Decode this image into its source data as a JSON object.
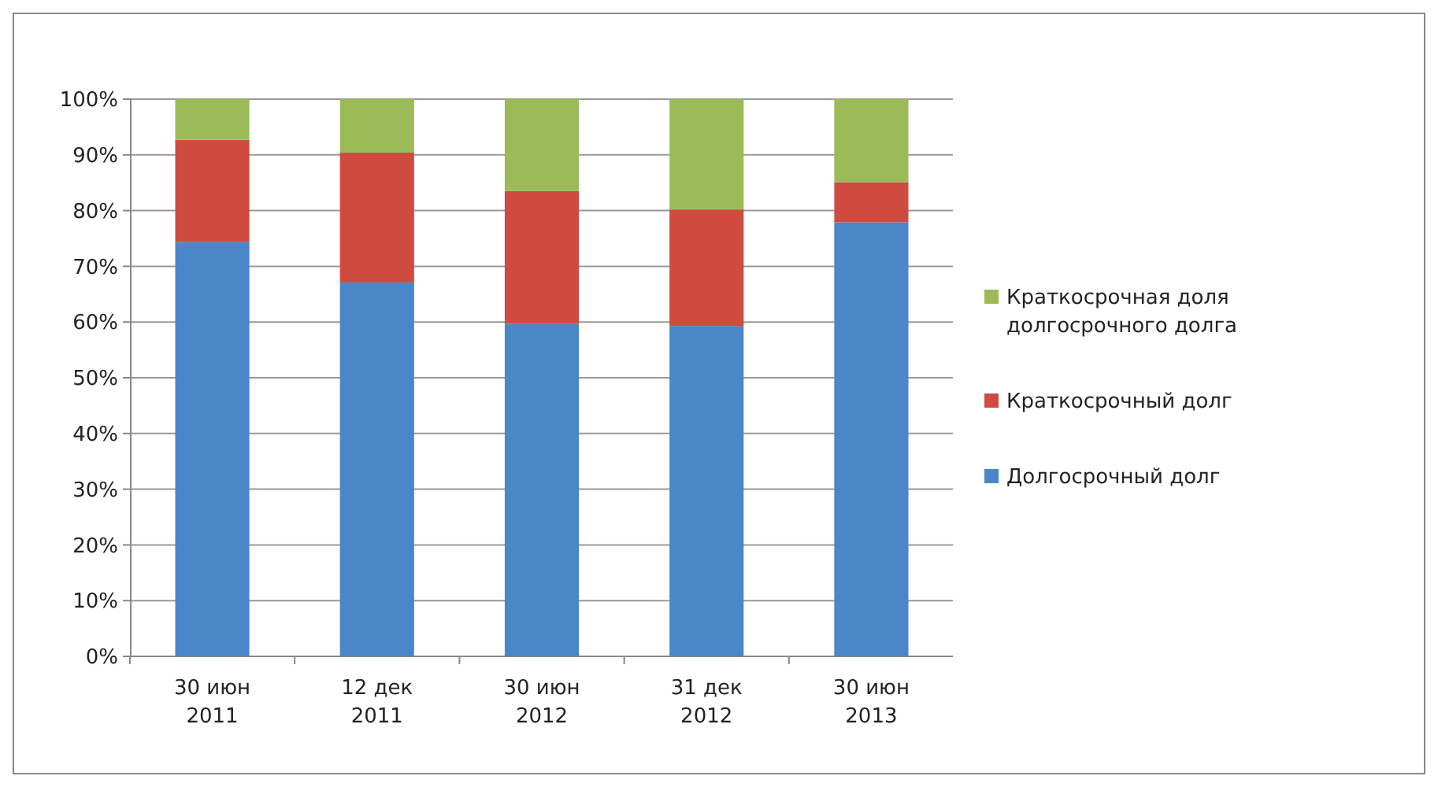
{
  "chart_data": {
    "type": "bar",
    "stacked": true,
    "categories": [
      "30 июн 2011",
      "12 дек 2011",
      "30 июн 2012",
      "31 дек 2012",
      "30 июн 2013"
    ],
    "series": [
      {
        "name": "Долгосрочный долг",
        "color": "#4a86c8",
        "values": [
          74.4,
          67.1,
          59.7,
          59.3,
          77.9
        ]
      },
      {
        "name": "Краткосрочный долг",
        "color": "#cf4a3f",
        "values": [
          18.3,
          23.3,
          23.8,
          20.9,
          7.2
        ]
      },
      {
        "name": "Краткосрочная доля долгосрочного долга",
        "color": "#9bbb59",
        "values": [
          7.3,
          9.6,
          16.5,
          19.8,
          14.9
        ]
      }
    ],
    "ylim": [
      0,
      100
    ],
    "yticks": [
      {
        "value": 0,
        "label": "0%"
      },
      {
        "value": 10,
        "label": "10%"
      },
      {
        "value": 20,
        "label": "20%"
      },
      {
        "value": 30,
        "label": "30%"
      },
      {
        "value": 40,
        "label": "40%"
      },
      {
        "value": 50,
        "label": "50%"
      },
      {
        "value": 60,
        "label": "60%"
      },
      {
        "value": 70,
        "label": "70%"
      },
      {
        "value": 80,
        "label": "80%"
      },
      {
        "value": 90,
        "label": "90%"
      },
      {
        "value": 100,
        "label": "100%"
      }
    ],
    "grid": "y",
    "legend": "right"
  }
}
